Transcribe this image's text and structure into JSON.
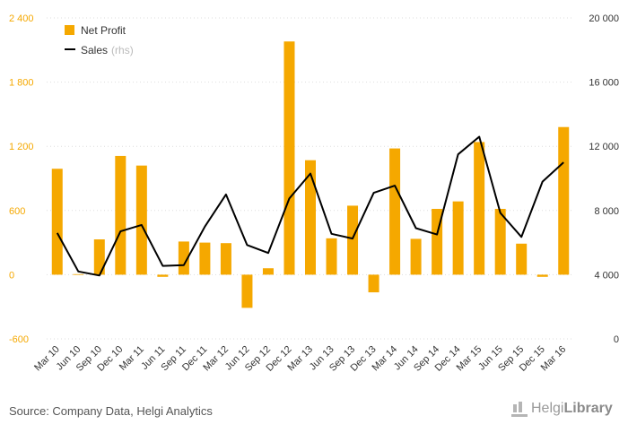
{
  "chart_data": {
    "type": "bar",
    "categories": [
      "Mar 10",
      "Jun 10",
      "Sep 10",
      "Dec 10",
      "Mar 11",
      "Jun 11",
      "Sep 11",
      "Dec 11",
      "Mar 12",
      "Jun 12",
      "Sep 12",
      "Dec 12",
      "Mar 13",
      "Jun 13",
      "Sep 13",
      "Dec 13",
      "Mar 14",
      "Jun 14",
      "Sep 14",
      "Dec 14",
      "Mar 15",
      "Jun 15",
      "Sep 15",
      "Dec 15",
      "Mar 16"
    ],
    "series": [
      {
        "name": "Net Profit",
        "type": "bar",
        "axis": "left",
        "color": "#f5a800",
        "values": [
          990,
          5,
          330,
          1110,
          1020,
          -20,
          310,
          300,
          295,
          -310,
          60,
          2180,
          1070,
          340,
          645,
          -165,
          1180,
          335,
          615,
          685,
          1240,
          615,
          290,
          -20,
          1380
        ]
      },
      {
        "name": "Sales",
        "name_suffix": "(rhs)",
        "type": "line",
        "axis": "right",
        "color": "#000000",
        "values": [
          6600,
          4200,
          3950,
          6700,
          7100,
          4550,
          4600,
          7000,
          9000,
          5850,
          5350,
          8750,
          10300,
          6550,
          6250,
          9100,
          9550,
          6900,
          6500,
          11500,
          12600,
          7850,
          6350,
          9800,
          11000
        ]
      }
    ],
    "left_axis": {
      "range": [
        -600,
        2400
      ],
      "ticks": [
        2400,
        1800,
        1200,
        600,
        0,
        -600
      ],
      "tick_labels": [
        "2 400",
        "1 800",
        "1 200",
        "600",
        "0",
        "-600"
      ],
      "color": "#f5a800"
    },
    "right_axis": {
      "range": [
        0,
        20000
      ],
      "ticks": [
        20000,
        16000,
        12000,
        8000,
        4000,
        0
      ],
      "tick_labels": [
        "20 000",
        "16 000",
        "12 000",
        "8 000",
        "4 000",
        "0"
      ]
    },
    "grid": true,
    "legend": "top-left",
    "title": "",
    "xlabel": "",
    "ylabel": ""
  },
  "footer": {
    "source": "Source: Company Data, Helgi Analytics",
    "brand_light": "Helgi",
    "brand_bold": "Library"
  },
  "icons": {
    "brand": "helgi-library-logo-icon"
  }
}
